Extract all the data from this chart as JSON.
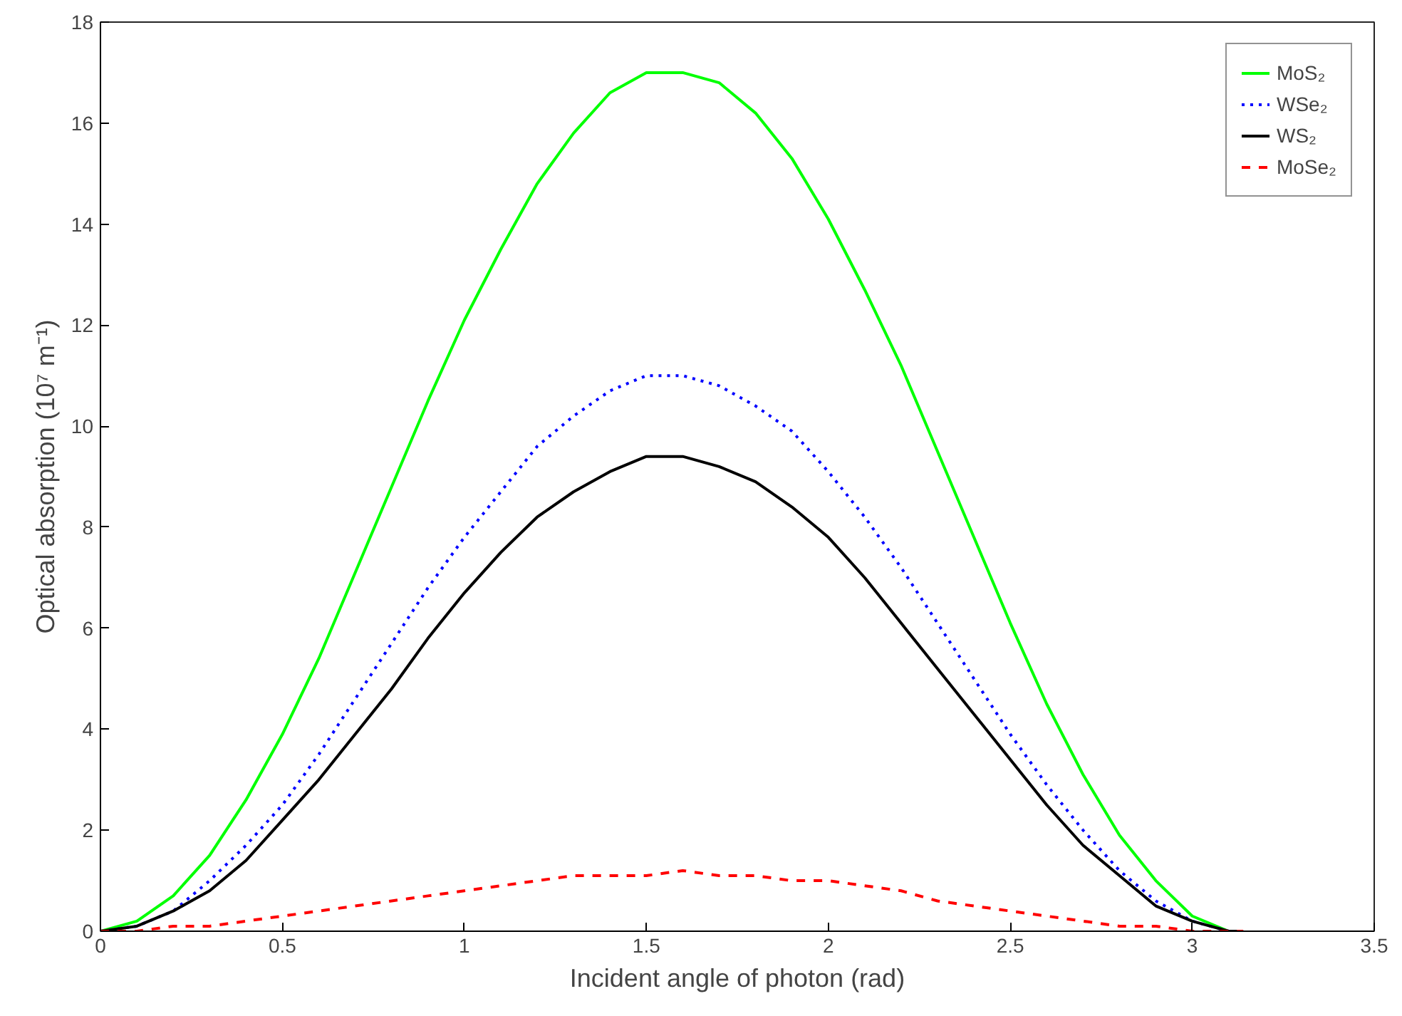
{
  "chart_data": {
    "type": "line",
    "xlabel": "Incident angle of photon (rad)",
    "ylabel": "Optical absorption (10⁷ m⁻¹)",
    "x": [
      0,
      0.1,
      0.2,
      0.3,
      0.4,
      0.5,
      0.6,
      0.7,
      0.8,
      0.9,
      1.0,
      1.1,
      1.2,
      1.3,
      1.4,
      1.5,
      1.6,
      1.7,
      1.8,
      1.9,
      2.0,
      2.1,
      2.2,
      2.3,
      2.4,
      2.5,
      2.6,
      2.7,
      2.8,
      2.9,
      3.0,
      3.1,
      3.14
    ],
    "series": [
      {
        "name": "MoS₂",
        "color": "#00ff00",
        "line_style": "solid",
        "values": [
          0,
          0.2,
          0.7,
          1.5,
          2.6,
          3.9,
          5.4,
          7.1,
          8.8,
          10.5,
          12.1,
          13.5,
          14.8,
          15.8,
          16.6,
          17.0,
          17.0,
          16.8,
          16.2,
          15.3,
          14.1,
          12.7,
          11.2,
          9.5,
          7.8,
          6.1,
          4.5,
          3.1,
          1.9,
          1.0,
          0.3,
          0.0,
          0
        ]
      },
      {
        "name": "WSe₂",
        "color": "#0000ff",
        "line_style": "dotted",
        "values": [
          0,
          0.1,
          0.4,
          1.0,
          1.7,
          2.5,
          3.5,
          4.6,
          5.7,
          6.8,
          7.8,
          8.7,
          9.6,
          10.2,
          10.7,
          11.0,
          11.0,
          10.8,
          10.4,
          9.9,
          9.1,
          8.2,
          7.2,
          6.1,
          5.0,
          3.9,
          2.9,
          2.0,
          1.2,
          0.6,
          0.2,
          0.0,
          0
        ]
      },
      {
        "name": "WS₂",
        "color": "#000000",
        "line_style": "solid",
        "values": [
          0,
          0.1,
          0.4,
          0.8,
          1.4,
          2.2,
          3.0,
          3.9,
          4.8,
          5.8,
          6.7,
          7.5,
          8.2,
          8.7,
          9.1,
          9.4,
          9.4,
          9.2,
          8.9,
          8.4,
          7.8,
          7.0,
          6.1,
          5.2,
          4.3,
          3.4,
          2.5,
          1.7,
          1.1,
          0.5,
          0.2,
          0.0,
          0
        ]
      },
      {
        "name": "MoSe₂",
        "color": "#ff0000",
        "line_style": "dashed",
        "values": [
          0,
          0.0,
          0.1,
          0.1,
          0.2,
          0.3,
          0.4,
          0.5,
          0.6,
          0.7,
          0.8,
          0.9,
          1.0,
          1.1,
          1.1,
          1.1,
          1.2,
          1.1,
          1.1,
          1.0,
          1.0,
          0.9,
          0.8,
          0.6,
          0.5,
          0.4,
          0.3,
          0.2,
          0.1,
          0.1,
          0.0,
          0.0,
          0
        ]
      }
    ],
    "xlim": [
      0,
      3.5
    ],
    "ylim": [
      0,
      18
    ],
    "xticks": [
      0,
      0.5,
      1,
      1.5,
      2,
      2.5,
      3,
      3.5
    ],
    "yticks": [
      0,
      2,
      4,
      6,
      8,
      10,
      12,
      14,
      16,
      18
    ],
    "grid": false,
    "legend": "top right"
  }
}
